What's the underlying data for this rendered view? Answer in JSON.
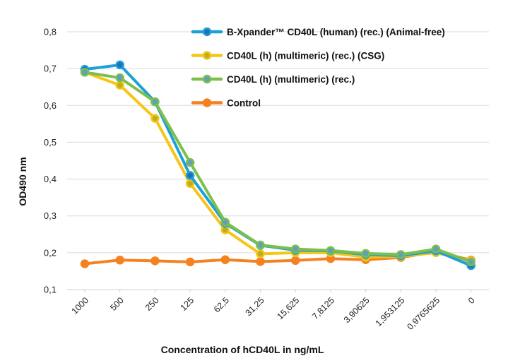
{
  "chart_data": {
    "type": "line",
    "title": "",
    "xlabel": "Concentration of hCD40L in ng/mL",
    "ylabel": "OD490 nm",
    "ylim": [
      0.1,
      0.8
    ],
    "yticks": [
      "0,1",
      "0,2",
      "0,3",
      "0,4",
      "0,5",
      "0,6",
      "0,7",
      "0,8"
    ],
    "ytick_values": [
      0.1,
      0.2,
      0.3,
      0.4,
      0.5,
      0.6,
      0.7,
      0.8
    ],
    "grid": true,
    "legend_position": "top-right",
    "categories": [
      "1000",
      "500",
      "250",
      "125",
      "62,5",
      "31,25",
      "15,625",
      "7,8125",
      "3,90625",
      "1,953125",
      "0,9765625",
      "0"
    ],
    "series": [
      {
        "name": "B-Xpander™ CD40L (human) (rec.) (Animal-free)",
        "color": "#1e9fd8",
        "marker_color": "#1e6fb8",
        "values": [
          0.698,
          0.71,
          0.61,
          0.41,
          0.28,
          0.22,
          0.207,
          0.205,
          0.195,
          0.192,
          0.205,
          0.165
        ]
      },
      {
        "name": "CD40L (h) (multimeric) (rec.) (CSG)",
        "color": "#f5c518",
        "marker_color": "#b8b020",
        "values": [
          0.69,
          0.655,
          0.565,
          0.388,
          0.262,
          0.197,
          0.2,
          0.2,
          0.188,
          0.19,
          0.2,
          0.178
        ]
      },
      {
        "name": "CD40L (h) (multimeric) (rec.)",
        "color": "#7cc04a",
        "marker_color": "#5f9fc0",
        "values": [
          0.69,
          0.675,
          0.61,
          0.445,
          0.283,
          0.221,
          0.21,
          0.206,
          0.198,
          0.195,
          0.21,
          0.175
        ]
      },
      {
        "name": "Control",
        "color": "#f58220",
        "marker_color": "#f58220",
        "values": [
          0.17,
          0.18,
          0.178,
          0.175,
          0.181,
          0.176,
          0.179,
          0.184,
          0.181,
          0.187,
          0.203,
          0.18
        ]
      }
    ]
  }
}
